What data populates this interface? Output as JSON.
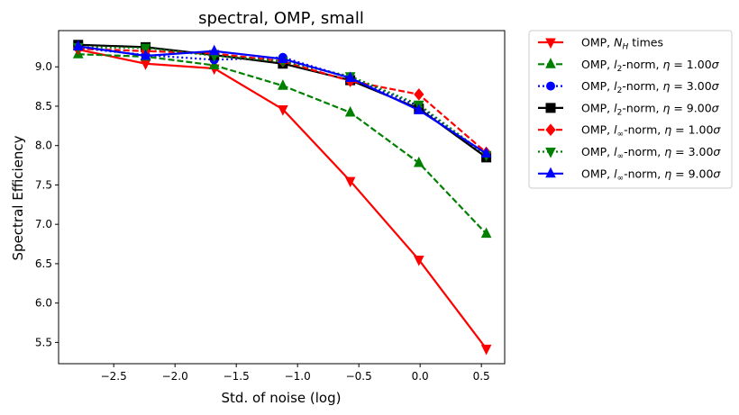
{
  "chart_data": {
    "type": "line",
    "title": "spectral, OMP, small",
    "xlabel": "Std. of noise (log)",
    "ylabel": "Spectral Efficiency",
    "xlim": [
      -2.95,
      0.69
    ],
    "ylim": [
      5.23,
      9.46
    ],
    "xticks": [
      -2.5,
      -2.0,
      -1.5,
      -1.0,
      -0.5,
      0.0,
      0.5
    ],
    "xtick_labels": [
      "−2.5",
      "−2.0",
      "−1.5",
      "−1.0",
      "−0.5",
      "0.0",
      "0.5"
    ],
    "yticks": [
      5.5,
      6.0,
      6.5,
      7.0,
      7.5,
      8.0,
      8.5,
      9.0
    ],
    "ytick_labels": [
      "5.5",
      "6.0",
      "6.5",
      "7.0",
      "7.5",
      "8.0",
      "8.5",
      "9.0"
    ],
    "x": [
      -2.79,
      -2.24,
      -1.68,
      -1.12,
      -0.57,
      -0.01,
      0.54
    ],
    "grid": false,
    "legend_position": "outside-right",
    "series": [
      {
        "name": "OMP, N_H times",
        "color": "#ff0000",
        "marker": "triangle-down",
        "dash": "solid",
        "values": [
          9.22,
          9.04,
          8.98,
          8.46,
          7.55,
          6.55,
          5.42
        ]
      },
      {
        "name": "OMP, l_2-norm, η = 1.00σ",
        "color": "#008000",
        "marker": "triangle-up",
        "dash": "dashed",
        "values": [
          9.16,
          9.13,
          9.02,
          8.76,
          8.42,
          7.78,
          6.88
        ]
      },
      {
        "name": "OMP, l_2-norm, η = 3.00σ",
        "color": "#0000ff",
        "marker": "circle",
        "dash": "dotted",
        "values": [
          9.24,
          9.15,
          9.09,
          9.12,
          8.86,
          8.5,
          7.88
        ]
      },
      {
        "name": "OMP, l_2-norm, η = 9.00σ",
        "color": "#000000",
        "marker": "square",
        "dash": "solid",
        "values": [
          9.28,
          9.25,
          9.15,
          9.04,
          8.83,
          8.47,
          7.85
        ]
      },
      {
        "name": "OMP, l_∞-norm, η = 1.00σ",
        "color": "#ff0000",
        "marker": "diamond",
        "dash": "dashed",
        "values": [
          9.23,
          9.2,
          9.17,
          9.07,
          8.82,
          8.65,
          7.91
        ]
      },
      {
        "name": "OMP, l_∞-norm, η = 3.00σ",
        "color": "#008000",
        "marker": "triangle-down",
        "dash": "dotted",
        "values": [
          9.25,
          9.24,
          9.14,
          9.07,
          8.88,
          8.52,
          7.88
        ]
      },
      {
        "name": "OMP, l_∞-norm, η = 9.00σ",
        "color": "#0000ff",
        "marker": "triangle-up",
        "dash": "solid",
        "values": [
          9.26,
          9.14,
          9.2,
          9.1,
          8.86,
          8.45,
          7.9
        ]
      }
    ]
  },
  "legend": {
    "entries": [
      {
        "prefix": "OMP, ",
        "sym": "N",
        "sub": "H",
        "tail": " times"
      },
      {
        "prefix": "OMP, ",
        "sym": "l",
        "sub": "2",
        "tail": "-norm, ",
        "eta": "η",
        "eq": " = 1.00",
        "sigma": "σ"
      },
      {
        "prefix": "OMP, ",
        "sym": "l",
        "sub": "2",
        "tail": "-norm, ",
        "eta": "η",
        "eq": " = 3.00",
        "sigma": "σ"
      },
      {
        "prefix": "OMP, ",
        "sym": "l",
        "sub": "2",
        "tail": "-norm, ",
        "eta": "η",
        "eq": " = 9.00",
        "sigma": "σ"
      },
      {
        "prefix": "OMP, ",
        "sym": "l",
        "sub": "∞",
        "tail": "-norm, ",
        "eta": "η",
        "eq": " = 1.00",
        "sigma": "σ"
      },
      {
        "prefix": "OMP, ",
        "sym": "l",
        "sub": "∞",
        "tail": "-norm, ",
        "eta": "η",
        "eq": " = 3.00",
        "sigma": "σ"
      },
      {
        "prefix": "OMP, ",
        "sym": "l",
        "sub": "∞",
        "tail": "-norm, ",
        "eta": "η",
        "eq": " = 9.00",
        "sigma": "σ"
      }
    ]
  }
}
